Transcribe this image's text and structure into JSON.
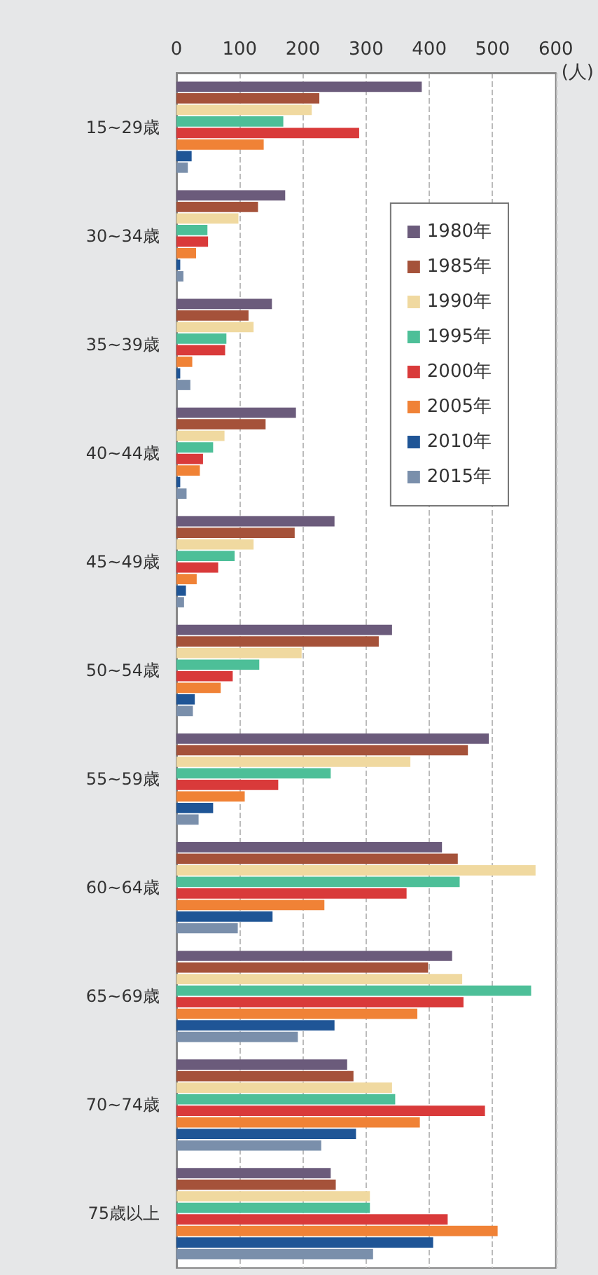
{
  "chart_data": {
    "type": "bar",
    "orientation": "horizontal",
    "xlabel": "(人)",
    "categories": [
      "15~29歳",
      "30~34歳",
      "35~39歳",
      "40~44歳",
      "45~49歳",
      "50~54歳",
      "55~59歳",
      "60~64歳",
      "65~69歳",
      "70~74歳",
      "75歳以上"
    ],
    "series": [
      {
        "name": "1980年",
        "color": "#6b5b7b",
        "values": [
          388,
          172,
          151,
          189,
          250,
          341,
          494,
          420,
          436,
          270,
          244
        ]
      },
      {
        "name": "1985年",
        "color": "#a5523a",
        "values": [
          226,
          129,
          114,
          141,
          187,
          320,
          461,
          445,
          398,
          280,
          252
        ]
      },
      {
        "name": "1990年",
        "color": "#f0d9a0",
        "values": [
          214,
          98,
          122,
          76,
          122,
          198,
          370,
          568,
          452,
          341,
          306
        ]
      },
      {
        "name": "1995年",
        "color": "#4dbf98",
        "values": [
          169,
          49,
          79,
          58,
          92,
          131,
          244,
          448,
          561,
          346,
          306
        ]
      },
      {
        "name": "2000年",
        "color": "#d93a3a",
        "values": [
          289,
          50,
          77,
          42,
          66,
          89,
          161,
          364,
          454,
          488,
          429
        ]
      },
      {
        "name": "2005年",
        "color": "#f08236",
        "values": [
          138,
          31,
          25,
          37,
          32,
          70,
          108,
          234,
          381,
          385,
          508
        ]
      },
      {
        "name": "2010年",
        "color": "#1f5596",
        "values": [
          24,
          6,
          6,
          6,
          15,
          29,
          58,
          152,
          250,
          284,
          406
        ]
      },
      {
        "name": "2015年",
        "color": "#7a8fab",
        "values": [
          18,
          11,
          22,
          16,
          12,
          26,
          35,
          97,
          192,
          229,
          311
        ]
      }
    ],
    "xlim": [
      0,
      600
    ],
    "xticks": [
      0,
      100,
      200,
      300,
      400,
      500,
      600
    ],
    "grid": "x",
    "legend": "top right"
  }
}
